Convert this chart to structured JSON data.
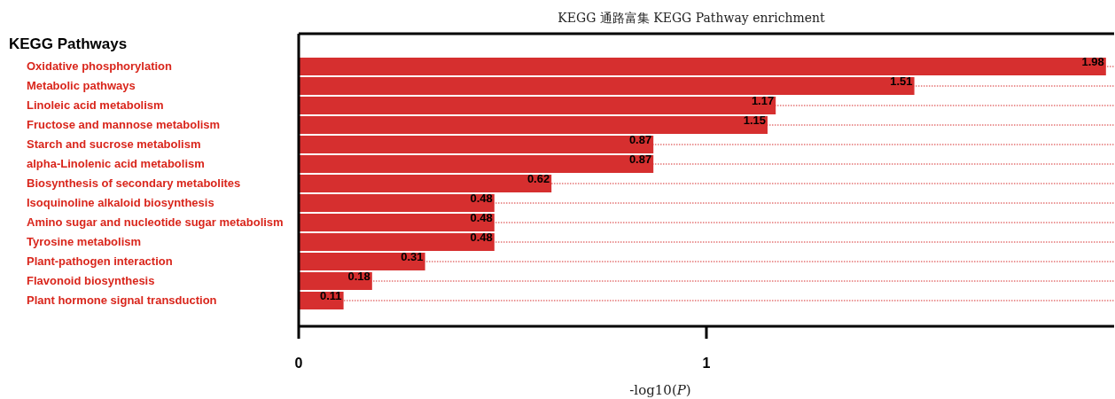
{
  "chart_data": {
    "type": "bar",
    "orientation": "horizontal",
    "title": "KEGG 通路富集 KEGG Pathway enrichment",
    "xlabel": "-log10(*P*)",
    "ylabel": "KEGG Pathways",
    "categories": [
      "Oxidative phosphorylation",
      "Metabolic pathways",
      "Linoleic acid metabolism",
      "Fructose and mannose metabolism",
      "Starch and sucrose metabolism",
      "alpha-Linolenic acid metabolism",
      "Biosynthesis of secondary metabolites",
      "Isoquinoline alkaloid biosynthesis",
      "Amino sugar and nucleotide sugar metabolism",
      "Tyrosine metabolism",
      "Plant-pathogen interaction",
      "Flavonoid biosynthesis",
      "Plant hormone signal transduction"
    ],
    "values": [
      1.98,
      1.51,
      1.17,
      1.15,
      0.87,
      0.87,
      0.62,
      0.48,
      0.48,
      0.48,
      0.31,
      0.18,
      0.11
    ],
    "color": "#d62f2f",
    "xlim": [
      0,
      2
    ],
    "xticks": [
      0,
      1
    ],
    "grid": "y",
    "data_labels": true
  }
}
